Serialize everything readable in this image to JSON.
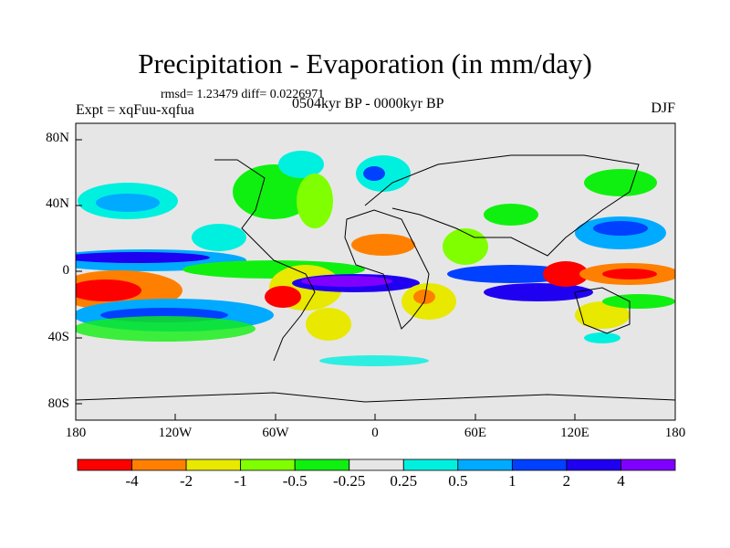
{
  "title": "Precipitation - Evaporation (in mm/day)",
  "stats": "rmsd= 1.23479 diff= 0.0226971",
  "experiment": "Expt = xqFuu-xqfua",
  "period": "0504kyr BP - 0000kyr BP",
  "season": "DJF",
  "lat_ticks": [
    "80N",
    "40N",
    "0",
    "40S",
    "80S"
  ],
  "lon_ticks": [
    "180",
    "120W",
    "60W",
    "0",
    "60E",
    "120E",
    "180"
  ],
  "colorbar": {
    "labels": [
      "-4",
      "-2",
      "-1",
      "-0.5",
      "-0.25",
      "0.25",
      "0.5",
      "1",
      "2",
      "4"
    ],
    "colors": [
      "#ff0000",
      "#ff8000",
      "#e8e800",
      "#80ff00",
      "#10f010",
      "#e6e6e6",
      "#00f0e0",
      "#00aaff",
      "#0040ff",
      "#2000f0",
      "#8000ff"
    ]
  }
}
